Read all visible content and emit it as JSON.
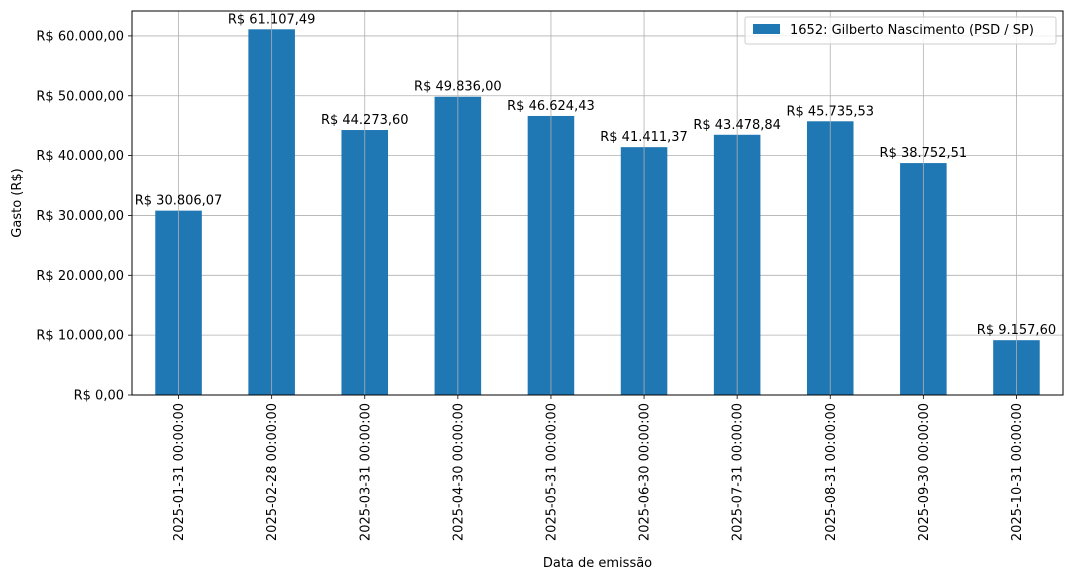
{
  "chart_data": {
    "type": "bar",
    "categories": [
      "2025-01-31 00:00:00",
      "2025-02-28 00:00:00",
      "2025-03-31 00:00:00",
      "2025-04-30 00:00:00",
      "2025-05-31 00:00:00",
      "2025-06-30 00:00:00",
      "2025-07-31 00:00:00",
      "2025-08-31 00:00:00",
      "2025-09-30 00:00:00",
      "2025-10-31 00:00:00"
    ],
    "series": [
      {
        "name": "1652: Gilberto Nascimento (PSD / SP)",
        "color": "#1f77b4",
        "values": [
          30806.07,
          61107.49,
          44273.6,
          49836.0,
          46624.43,
          41411.37,
          43478.84,
          45735.53,
          38752.51,
          9157.6
        ],
        "labels": [
          "R$ 30.806,07",
          "R$ 61.107,49",
          "R$ 44.273,60",
          "R$ 49.836,00",
          "R$ 46.624,43",
          "R$ 41.411,37",
          "R$ 43.478,84",
          "R$ 45.735,53",
          "R$ 38.752,51",
          "R$ 9.157,60"
        ]
      }
    ],
    "xlabel": "Data de emissão",
    "ylabel": "Gasto (R$)",
    "ylim": [
      0,
      64163
    ],
    "yticks": [
      0,
      10000,
      20000,
      30000,
      40000,
      50000,
      60000
    ],
    "ytick_labels": [
      "R$ 0,00",
      "R$ 10.000,00",
      "R$ 20.000,00",
      "R$ 30.000,00",
      "R$ 40.000,00",
      "R$ 50.000,00",
      "R$ 60.000,00"
    ],
    "grid": true,
    "legend_position": "top-right",
    "grid_color": "#b0b0b0"
  }
}
